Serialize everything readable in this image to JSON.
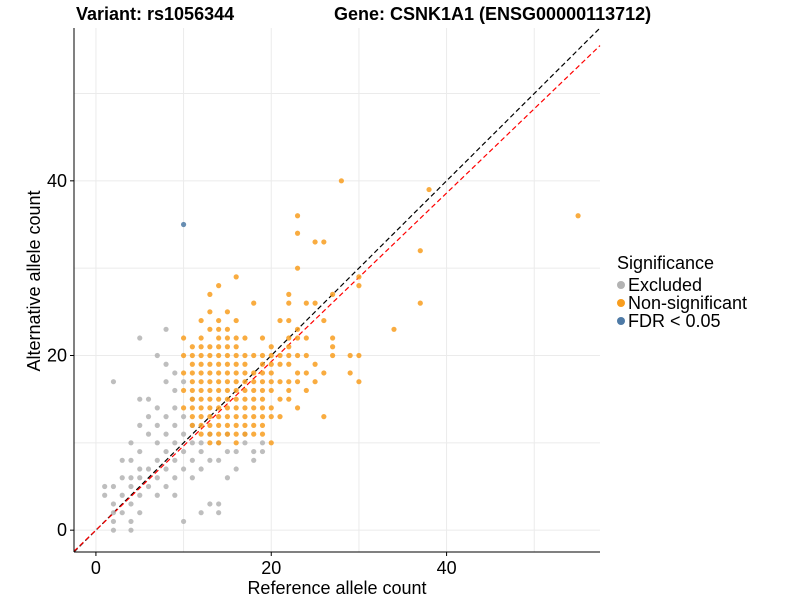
{
  "chart_data": {
    "type": "scatter",
    "title_left": "Variant: rs1056344",
    "title_right": "Gene: CSNK1A1 (ENSG00000113712)",
    "xlabel": "Reference allele count",
    "ylabel": "Alternative allele count",
    "xlim": [
      -2.5,
      57.5
    ],
    "ylim": [
      -2.5,
      57.5
    ],
    "x_ticks": [
      0,
      20,
      40
    ],
    "y_ticks": [
      0,
      20,
      40
    ],
    "legend": {
      "title": "Significance",
      "entries": [
        {
          "label": "Excluded",
          "color": "#b3b3b3"
        },
        {
          "label": "Non-significant",
          "color": "#f89d1e"
        },
        {
          "label": "FDR < 0.05",
          "color": "#4e7aa6"
        }
      ]
    },
    "reference_lines": [
      {
        "name": "identity-line",
        "slope": 1,
        "intercept": 0,
        "color": "#000000",
        "style": "dashed"
      },
      {
        "name": "fitted-line",
        "slope": 0.965,
        "intercept": 0,
        "color": "#ff0000",
        "style": "dashed"
      }
    ],
    "series": [
      {
        "name": "Excluded",
        "color": "#b3b3b3",
        "points": [
          [
            1,
            4
          ],
          [
            1,
            5
          ],
          [
            2,
            3
          ],
          [
            2,
            5
          ],
          [
            2,
            2
          ],
          [
            2,
            1
          ],
          [
            2,
            0
          ],
          [
            2,
            17
          ],
          [
            3,
            4
          ],
          [
            3,
            2
          ],
          [
            3,
            6
          ],
          [
            3,
            8
          ],
          [
            4,
            3
          ],
          [
            4,
            5
          ],
          [
            4,
            6
          ],
          [
            4,
            0
          ],
          [
            4,
            1
          ],
          [
            4,
            8
          ],
          [
            4,
            10
          ],
          [
            5,
            4
          ],
          [
            5,
            6
          ],
          [
            5,
            7
          ],
          [
            5,
            9
          ],
          [
            5,
            12
          ],
          [
            5,
            15
          ],
          [
            5,
            22
          ],
          [
            5,
            2
          ],
          [
            6,
            5
          ],
          [
            6,
            7
          ],
          [
            6,
            11
          ],
          [
            6,
            13
          ],
          [
            6,
            15
          ],
          [
            7,
            6
          ],
          [
            7,
            8
          ],
          [
            7,
            10
          ],
          [
            7,
            12
          ],
          [
            7,
            14
          ],
          [
            7,
            20
          ],
          [
            7,
            4
          ],
          [
            8,
            5
          ],
          [
            8,
            7
          ],
          [
            8,
            9
          ],
          [
            8,
            11
          ],
          [
            8,
            13
          ],
          [
            8,
            17
          ],
          [
            8,
            19
          ],
          [
            8,
            23
          ],
          [
            9,
            4
          ],
          [
            9,
            6
          ],
          [
            9,
            8
          ],
          [
            9,
            10
          ],
          [
            9,
            12
          ],
          [
            9,
            14
          ],
          [
            9,
            16
          ],
          [
            9,
            18
          ],
          [
            10,
            1
          ],
          [
            10,
            7
          ],
          [
            10,
            9
          ],
          [
            10,
            11
          ],
          [
            10,
            13
          ],
          [
            10,
            17
          ],
          [
            11,
            8
          ],
          [
            11,
            10
          ],
          [
            11,
            12
          ],
          [
            11,
            6
          ],
          [
            11,
            15
          ],
          [
            12,
            2
          ],
          [
            12,
            7
          ],
          [
            12,
            10
          ],
          [
            12,
            9
          ],
          [
            13,
            8
          ],
          [
            13,
            11
          ],
          [
            13,
            3
          ],
          [
            14,
            2
          ],
          [
            14,
            3
          ],
          [
            14,
            10
          ],
          [
            14,
            8
          ],
          [
            15,
            6
          ],
          [
            15,
            9
          ],
          [
            15,
            11
          ],
          [
            16,
            7
          ],
          [
            16,
            9
          ],
          [
            17,
            11
          ],
          [
            17,
            10
          ],
          [
            18,
            8
          ],
          [
            18,
            9
          ],
          [
            19,
            9
          ],
          [
            19,
            10
          ]
        ]
      },
      {
        "name": "Non-significant",
        "color": "#f89d1e",
        "points": [
          [
            10,
            14
          ],
          [
            10,
            16
          ],
          [
            10,
            18
          ],
          [
            10,
            20
          ],
          [
            10,
            22
          ],
          [
            11,
            12
          ],
          [
            11,
            13
          ],
          [
            11,
            14
          ],
          [
            11,
            15
          ],
          [
            11,
            16
          ],
          [
            11,
            17
          ],
          [
            11,
            18
          ],
          [
            11,
            19
          ],
          [
            11,
            20
          ],
          [
            11,
            21
          ],
          [
            12,
            11
          ],
          [
            12,
            12
          ],
          [
            12,
            13
          ],
          [
            12,
            14
          ],
          [
            12,
            15
          ],
          [
            12,
            16
          ],
          [
            12,
            17
          ],
          [
            12,
            18
          ],
          [
            12,
            19
          ],
          [
            12,
            20
          ],
          [
            12,
            21
          ],
          [
            12,
            22
          ],
          [
            12,
            24
          ],
          [
            13,
            10
          ],
          [
            13,
            11
          ],
          [
            13,
            12
          ],
          [
            13,
            13
          ],
          [
            13,
            14
          ],
          [
            13,
            15
          ],
          [
            13,
            16
          ],
          [
            13,
            17
          ],
          [
            13,
            18
          ],
          [
            13,
            19
          ],
          [
            13,
            20
          ],
          [
            13,
            21
          ],
          [
            13,
            23
          ],
          [
            13,
            25
          ],
          [
            13,
            27
          ],
          [
            14,
            10
          ],
          [
            14,
            11
          ],
          [
            14,
            12
          ],
          [
            14,
            13
          ],
          [
            14,
            14
          ],
          [
            14,
            15
          ],
          [
            14,
            16
          ],
          [
            14,
            17
          ],
          [
            14,
            18
          ],
          [
            14,
            19
          ],
          [
            14,
            20
          ],
          [
            14,
            21
          ],
          [
            14,
            22
          ],
          [
            14,
            23
          ],
          [
            14,
            24
          ],
          [
            14,
            28
          ],
          [
            15,
            11
          ],
          [
            15,
            12
          ],
          [
            15,
            13
          ],
          [
            15,
            14
          ],
          [
            15,
            15
          ],
          [
            15,
            16
          ],
          [
            15,
            17
          ],
          [
            15,
            18
          ],
          [
            15,
            19
          ],
          [
            15,
            20
          ],
          [
            15,
            21
          ],
          [
            15,
            22
          ],
          [
            15,
            23
          ],
          [
            15,
            25
          ],
          [
            16,
            10
          ],
          [
            16,
            11
          ],
          [
            16,
            12
          ],
          [
            16,
            13
          ],
          [
            16,
            14
          ],
          [
            16,
            15
          ],
          [
            16,
            16
          ],
          [
            16,
            17
          ],
          [
            16,
            18
          ],
          [
            16,
            19
          ],
          [
            16,
            20
          ],
          [
            16,
            21
          ],
          [
            16,
            22
          ],
          [
            16,
            24
          ],
          [
            16,
            29
          ],
          [
            17,
            11
          ],
          [
            17,
            12
          ],
          [
            17,
            13
          ],
          [
            17,
            14
          ],
          [
            17,
            15
          ],
          [
            17,
            16
          ],
          [
            17,
            17
          ],
          [
            17,
            18
          ],
          [
            17,
            19
          ],
          [
            17,
            20
          ],
          [
            17,
            22
          ],
          [
            18,
            11
          ],
          [
            18,
            12
          ],
          [
            18,
            13
          ],
          [
            18,
            14
          ],
          [
            18,
            15
          ],
          [
            18,
            16
          ],
          [
            18,
            17
          ],
          [
            18,
            18
          ],
          [
            18,
            20
          ],
          [
            18,
            26
          ],
          [
            19,
            11
          ],
          [
            19,
            12
          ],
          [
            19,
            13
          ],
          [
            19,
            14
          ],
          [
            19,
            15
          ],
          [
            19,
            16
          ],
          [
            19,
            17
          ],
          [
            19,
            18
          ],
          [
            19,
            19
          ],
          [
            19,
            20
          ],
          [
            19,
            22
          ],
          [
            20,
            10
          ],
          [
            20,
            13
          ],
          [
            20,
            14
          ],
          [
            20,
            16
          ],
          [
            20,
            17
          ],
          [
            20,
            18
          ],
          [
            20,
            19
          ],
          [
            20,
            20
          ],
          [
            20,
            21
          ],
          [
            21,
            13
          ],
          [
            21,
            15
          ],
          [
            21,
            17
          ],
          [
            21,
            19
          ],
          [
            21,
            20
          ],
          [
            21,
            24
          ],
          [
            22,
            15
          ],
          [
            22,
            16
          ],
          [
            22,
            17
          ],
          [
            22,
            19
          ],
          [
            22,
            20
          ],
          [
            22,
            21
          ],
          [
            22,
            22
          ],
          [
            22,
            24
          ],
          [
            22,
            26
          ],
          [
            22,
            27
          ],
          [
            23,
            14
          ],
          [
            23,
            17
          ],
          [
            23,
            18
          ],
          [
            23,
            20
          ],
          [
            23,
            22
          ],
          [
            23,
            23
          ],
          [
            23,
            34
          ],
          [
            23,
            36
          ],
          [
            23,
            30
          ],
          [
            24,
            16
          ],
          [
            24,
            18
          ],
          [
            24,
            20
          ],
          [
            24,
            22
          ],
          [
            24,
            26
          ],
          [
            25,
            17
          ],
          [
            25,
            19
          ],
          [
            25,
            26
          ],
          [
            25,
            33
          ],
          [
            26,
            13
          ],
          [
            26,
            18
          ],
          [
            26,
            24
          ],
          [
            26,
            33
          ],
          [
            27,
            20
          ],
          [
            27,
            21
          ],
          [
            27,
            22
          ],
          [
            27,
            27
          ],
          [
            28,
            40
          ],
          [
            29,
            18
          ],
          [
            29,
            20
          ],
          [
            30,
            17
          ],
          [
            30,
            20
          ],
          [
            30,
            28
          ],
          [
            30,
            29
          ],
          [
            34,
            23
          ],
          [
            37,
            26
          ],
          [
            37,
            32
          ],
          [
            38,
            39
          ],
          [
            55,
            36
          ]
        ]
      },
      {
        "name": "FDR < 0.05",
        "color": "#4e7aa6",
        "points": [
          [
            10,
            35
          ]
        ]
      }
    ]
  }
}
